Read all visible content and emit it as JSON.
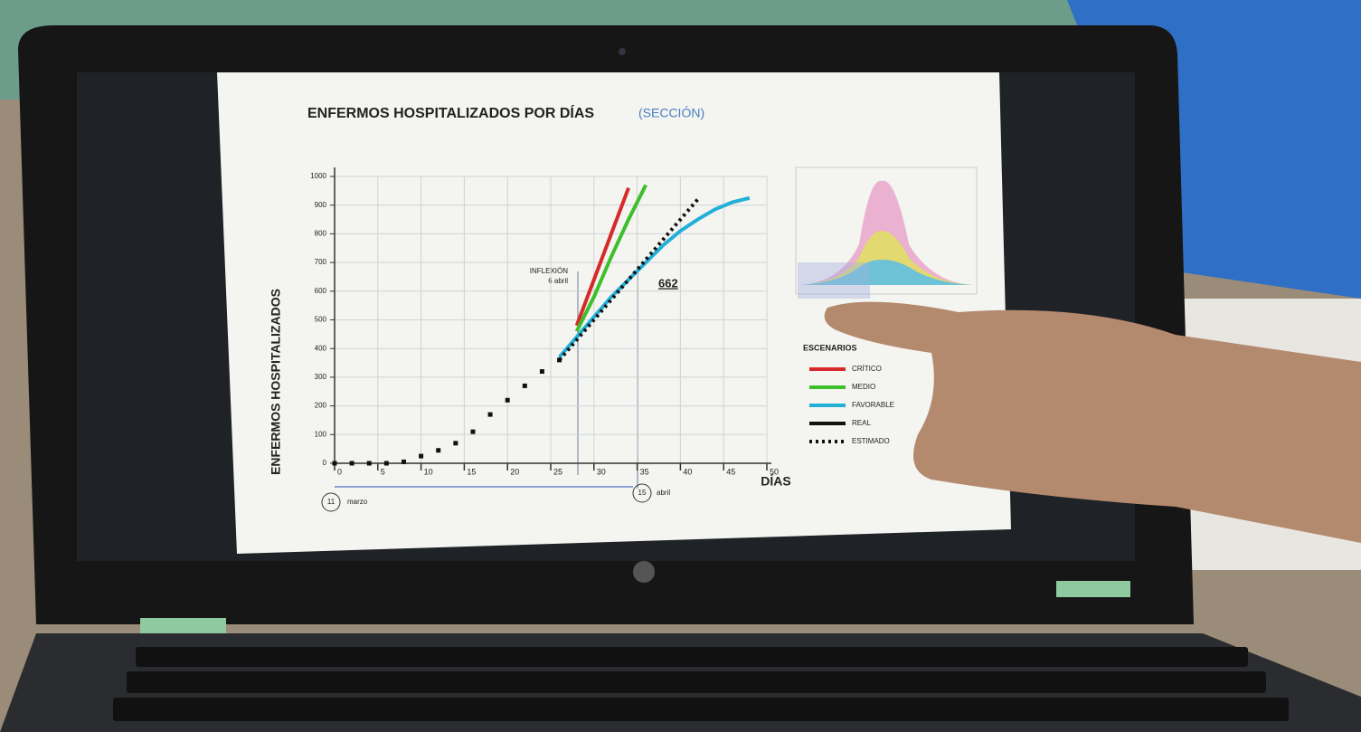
{
  "chart_data": {
    "type": "line",
    "title": "ENFERMOS HOSPITALIZADOS POR DÍAS",
    "subtitle": "(SECCIÓN)",
    "y_label": "ENFERMOS HOSPITALIZADOS",
    "x_label": "DÍAS",
    "x": [
      0,
      2,
      4,
      6,
      8,
      10,
      12,
      14,
      16,
      18,
      20,
      22,
      24,
      26,
      28,
      30,
      32,
      34,
      36,
      38,
      40,
      42,
      44,
      46,
      48
    ],
    "series": [
      {
        "name": "CRÍTICO",
        "color": "#d62a2a",
        "style": "line",
        "values": [
          null,
          null,
          null,
          null,
          null,
          null,
          null,
          null,
          null,
          null,
          null,
          null,
          null,
          null,
          480,
          640,
          800,
          960,
          null,
          null,
          null,
          null,
          null,
          null,
          null
        ]
      },
      {
        "name": "MEDIO",
        "color": "#3cbf2a",
        "style": "line",
        "values": [
          null,
          null,
          null,
          null,
          null,
          null,
          null,
          null,
          null,
          null,
          null,
          null,
          null,
          null,
          460,
          580,
          720,
          850,
          970,
          null,
          null,
          null,
          null,
          null,
          null
        ]
      },
      {
        "name": "FAVORABLE",
        "color": "#22b0d8",
        "style": "line",
        "values": [
          null,
          null,
          null,
          null,
          null,
          null,
          null,
          null,
          null,
          null,
          null,
          null,
          null,
          370,
          440,
          510,
          580,
          640,
          700,
          760,
          810,
          850,
          885,
          910,
          925
        ]
      },
      {
        "name": "REAL",
        "color": "#111111",
        "style": "dots",
        "values": [
          0,
          0,
          0,
          0,
          5,
          25,
          45,
          70,
          110,
          170,
          220,
          270,
          320,
          360,
          null,
          null,
          null,
          null,
          null,
          null,
          null,
          null,
          null,
          null,
          null
        ]
      },
      {
        "name": "ESTIMADO",
        "color": "#111111",
        "style": "dotted",
        "values": [
          null,
          null,
          null,
          null,
          null,
          null,
          null,
          null,
          null,
          null,
          null,
          null,
          null,
          360,
          430,
          500,
          570,
          640,
          710,
          780,
          850,
          920,
          null,
          null,
          null
        ]
      }
    ],
    "legend_title": "ESCENARIOS",
    "annotations": [
      "INFLEXIÓN",
      "6 abril",
      "662",
      "11",
      "marzo",
      "15",
      "abril"
    ],
    "xlim": [
      0,
      50
    ],
    "xticks": [
      0,
      5,
      10,
      15,
      20,
      25,
      30,
      35,
      40,
      45,
      50
    ],
    "ylim": [
      0,
      1000
    ],
    "yticks": [
      0,
      100,
      200,
      300,
      400,
      500,
      600,
      700,
      800,
      900,
      1000
    ],
    "grid": true,
    "legend": "right"
  }
}
